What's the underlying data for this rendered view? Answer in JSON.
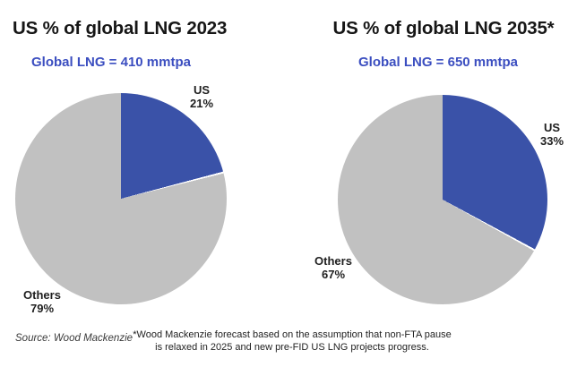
{
  "charts_meta": {
    "source_note": "Source: Wood Mackenzie",
    "footnote_line1": "*Wood Mackenzie forecast based on the assumption that non-FTA pause",
    "footnote_line2": "is relaxed in 2025 and new pre-FID US LNG projects progress."
  },
  "colors": {
    "us_slice": "#3a52a8",
    "others_slice": "#c1c1c1",
    "slice_seam": "#ffffff",
    "subtitle_blue": "#3b4ec0",
    "title_text": "#161616",
    "label_text": "#1f1f1f"
  },
  "chart_data": [
    {
      "type": "pie",
      "title": "US % of global LNG 2023",
      "subtitle": "Global LNG = 410 mmtpa",
      "total_value_mmtpa": 410,
      "start_angle_deg": 0,
      "direction": "clockwise",
      "legend_position": "outside-labels",
      "slices": [
        {
          "label": "US",
          "value_pct": 21,
          "pct_label": "21%",
          "color": "#3a52a8"
        },
        {
          "label": "Others",
          "value_pct": 79,
          "pct_label": "79%",
          "color": "#c1c1c1"
        }
      ]
    },
    {
      "type": "pie",
      "title": "US % of global LNG 2035*",
      "subtitle": "Global LNG = 650 mmtpa",
      "total_value_mmtpa": 650,
      "start_angle_deg": 0,
      "direction": "clockwise",
      "legend_position": "outside-labels",
      "slices": [
        {
          "label": "US",
          "value_pct": 33,
          "pct_label": "33%",
          "color": "#3a52a8"
        },
        {
          "label": "Others",
          "value_pct": 67,
          "pct_label": "67%",
          "color": "#c1c1c1"
        }
      ]
    }
  ]
}
